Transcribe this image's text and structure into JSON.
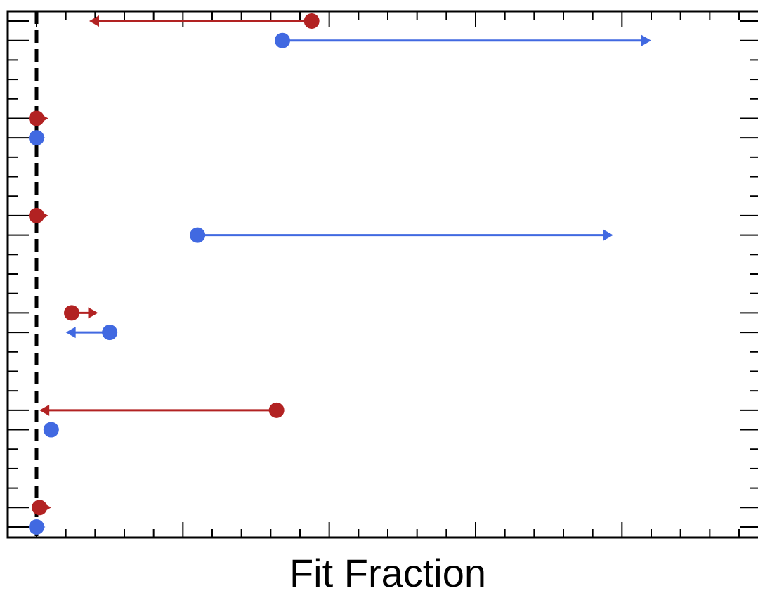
{
  "chart_data": {
    "type": "scatter",
    "title": "",
    "xlabel": "Fit Fraction",
    "ylabel": "",
    "grid": false,
    "legend": "none",
    "xlim": [
      -0.1,
      2.45
    ],
    "ylim": [
      0,
      27
    ],
    "reference_line": {
      "x": 0.0,
      "style": "dashed",
      "color": "#000000"
    },
    "colors": {
      "red": "#b22222",
      "blue": "#4169e1"
    },
    "series": [
      {
        "color": "red",
        "points": [
          {
            "y": 26,
            "value": 0.94,
            "arrow_to": 0.18,
            "arrow_dir": "left"
          },
          {
            "y": 21,
            "value": 0.0,
            "arrow_to": 0.04,
            "arrow_dir": "right"
          },
          {
            "y": 16,
            "value": 0.0,
            "arrow_to": 0.04,
            "arrow_dir": "right"
          },
          {
            "y": 11,
            "value": 0.12,
            "arrow_to": 0.21,
            "arrow_dir": "right"
          },
          {
            "y": 6,
            "value": 0.82,
            "arrow_to": 0.01,
            "arrow_dir": "left"
          },
          {
            "y": 1,
            "value": 0.01,
            "arrow_to": 0.05,
            "arrow_dir": "right"
          }
        ]
      },
      {
        "color": "blue",
        "points": [
          {
            "y": 25,
            "value": 0.84,
            "arrow_to": 2.1,
            "arrow_dir": "right"
          },
          {
            "y": 20,
            "value": 0.0,
            "arrow_to": 0.03,
            "arrow_dir": "right"
          },
          {
            "y": 15,
            "value": 0.55,
            "arrow_to": 1.97,
            "arrow_dir": "right"
          },
          {
            "y": 10,
            "value": 0.25,
            "arrow_to": 0.1,
            "arrow_dir": "left"
          },
          {
            "y": 5,
            "value": 0.05
          },
          {
            "y": 0,
            "value": 0.0,
            "arrow_to": 0.03,
            "arrow_dir": "right"
          }
        ]
      }
    ]
  }
}
